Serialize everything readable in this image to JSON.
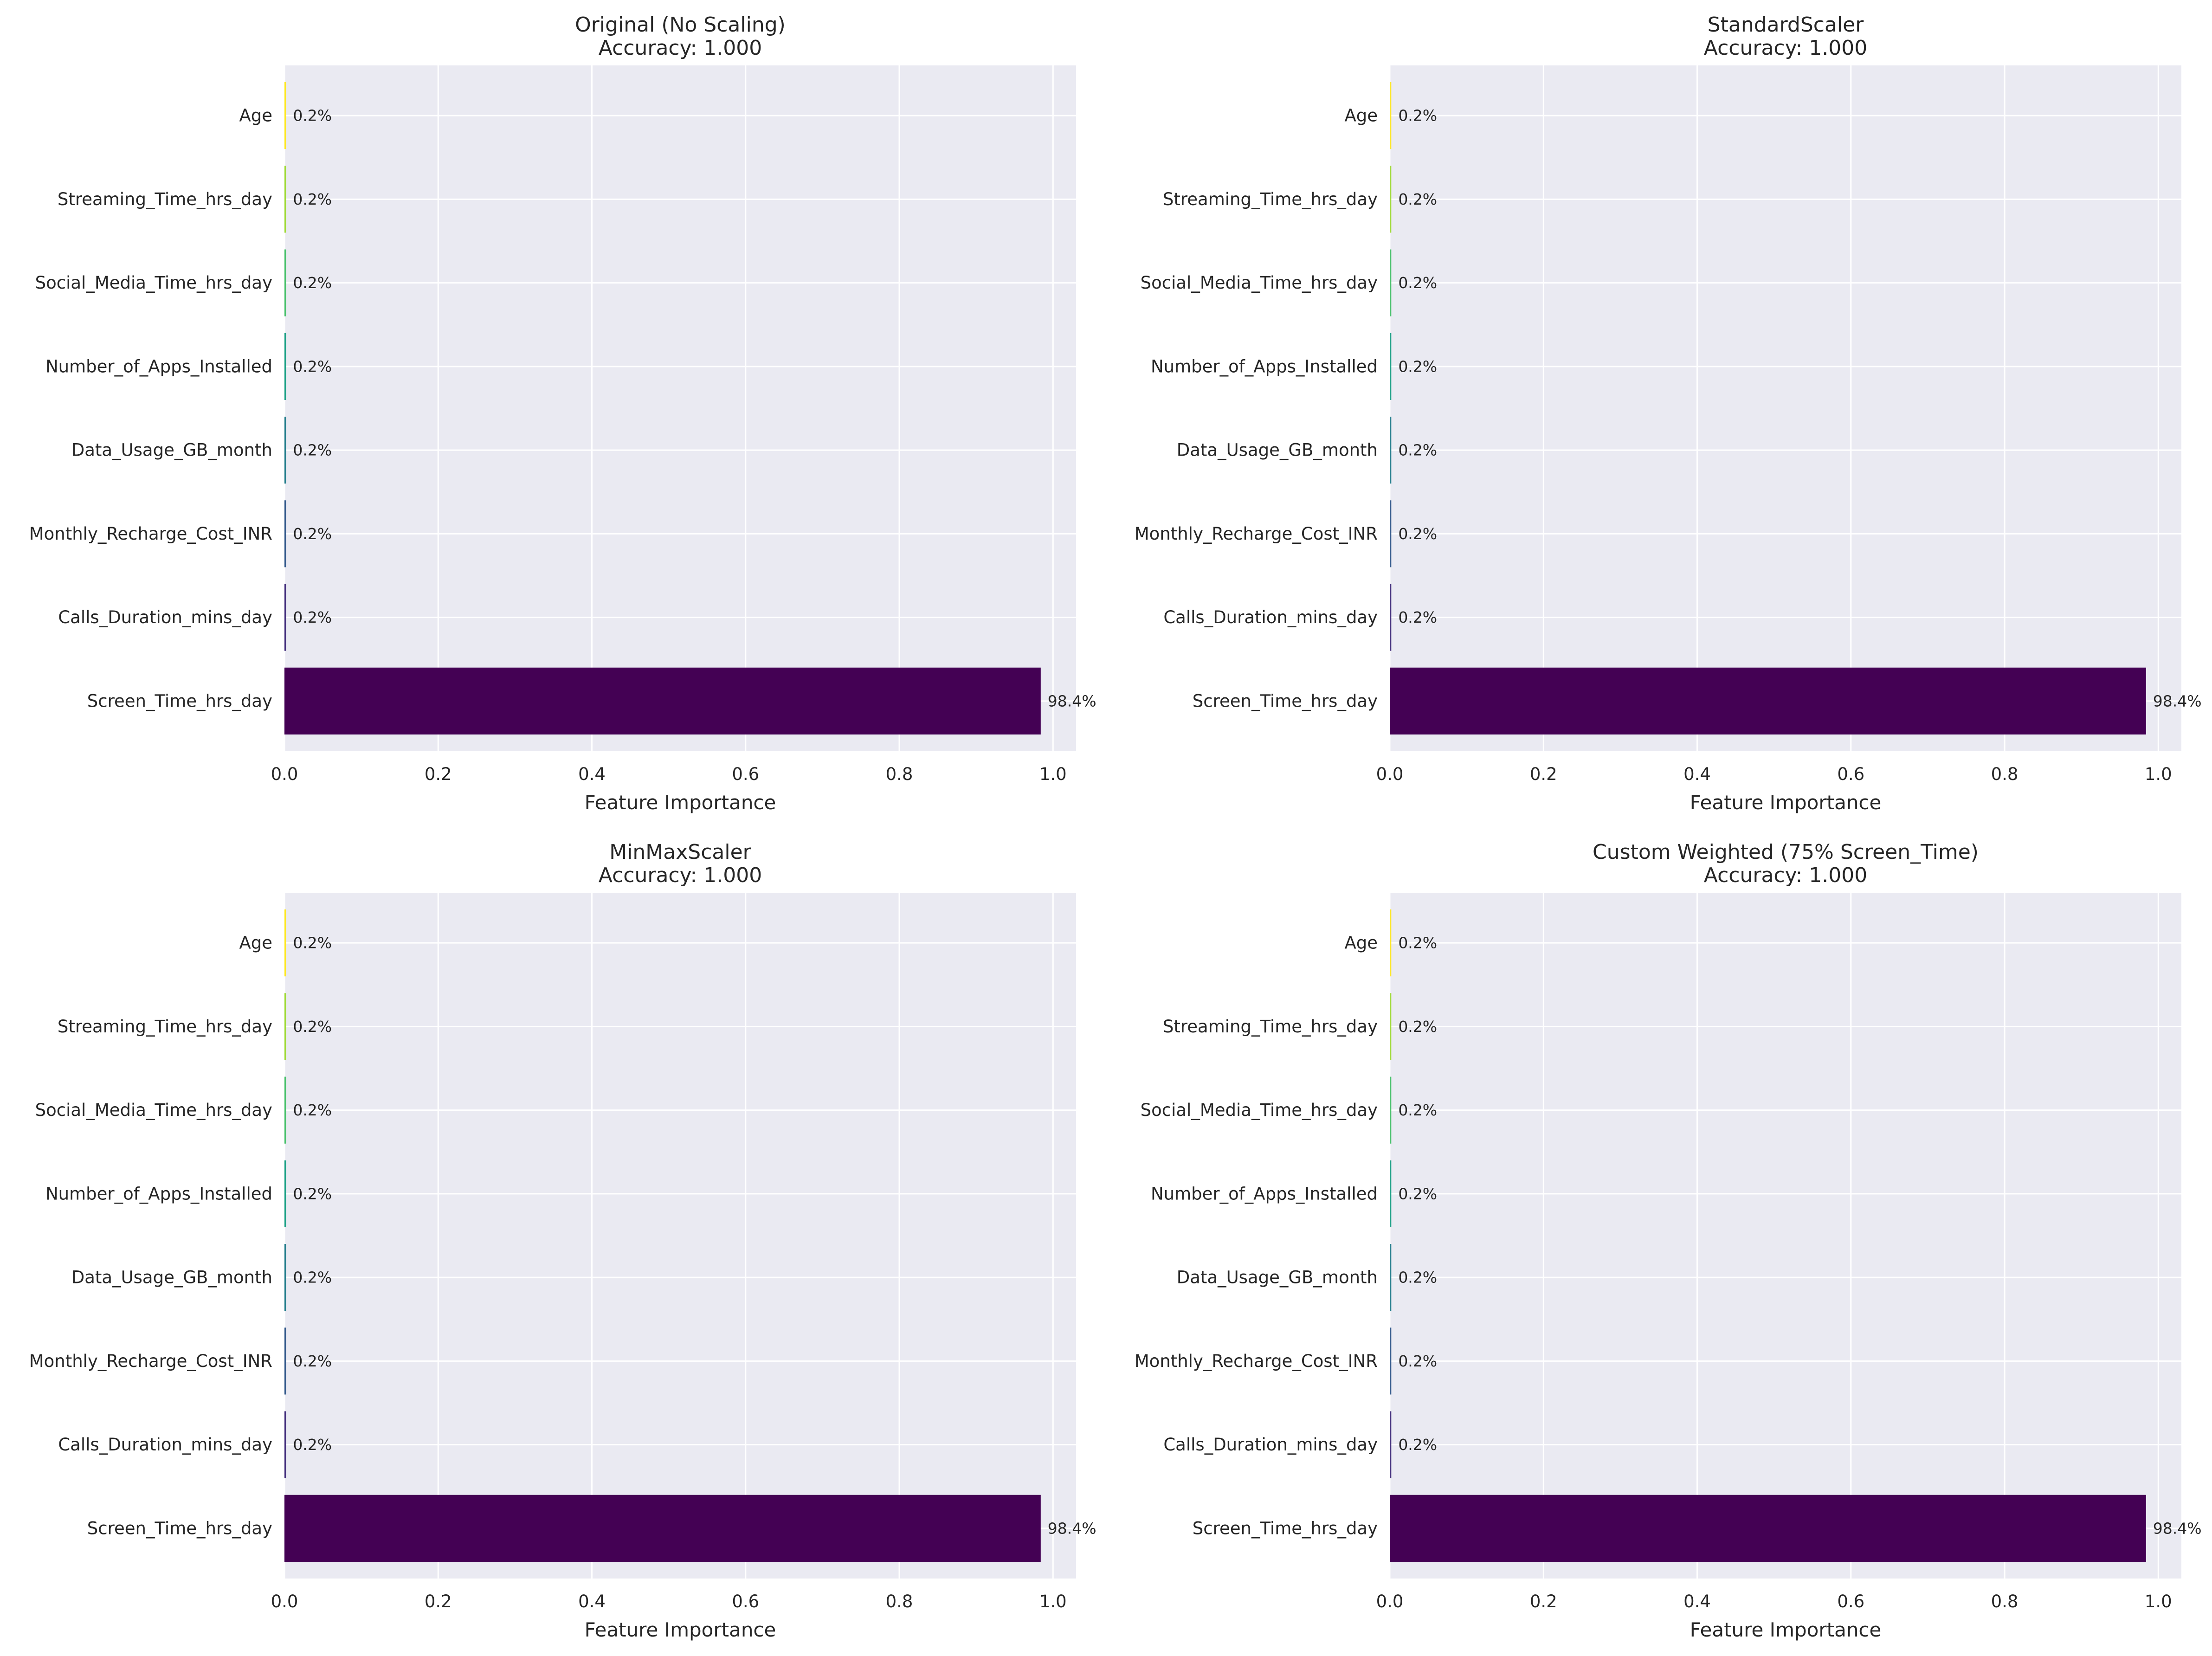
{
  "figure": {
    "background": "#ffffff",
    "axes_background": "#eaeaf2",
    "grid_color": "#ffffff",
    "text_color": "#262626"
  },
  "chart_data": [
    {
      "type": "bar",
      "orientation": "horizontal",
      "title": "Original (No Scaling)",
      "subtitle": "Accuracy: 1.000",
      "xlabel": "Feature Importance",
      "ylabel": "",
      "categories": [
        "Age",
        "Streaming_Time_hrs_day",
        "Social_Media_Time_hrs_day",
        "Number_of_Apps_Installed",
        "Data_Usage_GB_month",
        "Monthly_Recharge_Cost_INR",
        "Calls_Duration_mins_day",
        "Screen_Time_hrs_day"
      ],
      "values": [
        0.002,
        0.002,
        0.002,
        0.002,
        0.002,
        0.002,
        0.002,
        0.984
      ],
      "labels": [
        "0.2%",
        "0.2%",
        "0.2%",
        "0.2%",
        "0.2%",
        "0.2%",
        "0.2%",
        "98.4%"
      ],
      "colors": [
        "#fde725",
        "#a0da39",
        "#4ac16d",
        "#1fa187",
        "#277f8e",
        "#365c8d",
        "#46327e",
        "#440154"
      ],
      "xlim": [
        0,
        1.03
      ],
      "xticks": [
        0.0,
        0.2,
        0.4,
        0.6,
        0.8,
        1.0
      ],
      "xtick_labels": [
        "0.0",
        "0.2",
        "0.4",
        "0.6",
        "0.8",
        "1.0"
      ],
      "grid": true
    },
    {
      "type": "bar",
      "orientation": "horizontal",
      "title": "StandardScaler",
      "subtitle": "Accuracy: 1.000",
      "xlabel": "Feature Importance",
      "ylabel": "",
      "categories": [
        "Age",
        "Streaming_Time_hrs_day",
        "Social_Media_Time_hrs_day",
        "Number_of_Apps_Installed",
        "Data_Usage_GB_month",
        "Monthly_Recharge_Cost_INR",
        "Calls_Duration_mins_day",
        "Screen_Time_hrs_day"
      ],
      "values": [
        0.002,
        0.002,
        0.002,
        0.002,
        0.002,
        0.002,
        0.002,
        0.984
      ],
      "labels": [
        "0.2%",
        "0.2%",
        "0.2%",
        "0.2%",
        "0.2%",
        "0.2%",
        "0.2%",
        "98.4%"
      ],
      "colors": [
        "#fde725",
        "#a0da39",
        "#4ac16d",
        "#1fa187",
        "#277f8e",
        "#365c8d",
        "#46327e",
        "#440154"
      ],
      "xlim": [
        0,
        1.03
      ],
      "xticks": [
        0.0,
        0.2,
        0.4,
        0.6,
        0.8,
        1.0
      ],
      "xtick_labels": [
        "0.0",
        "0.2",
        "0.4",
        "0.6",
        "0.8",
        "1.0"
      ],
      "grid": true
    },
    {
      "type": "bar",
      "orientation": "horizontal",
      "title": "MinMaxScaler",
      "subtitle": "Accuracy: 1.000",
      "xlabel": "Feature Importance",
      "ylabel": "",
      "categories": [
        "Age",
        "Streaming_Time_hrs_day",
        "Social_Media_Time_hrs_day",
        "Number_of_Apps_Installed",
        "Data_Usage_GB_month",
        "Monthly_Recharge_Cost_INR",
        "Calls_Duration_mins_day",
        "Screen_Time_hrs_day"
      ],
      "values": [
        0.002,
        0.002,
        0.002,
        0.002,
        0.002,
        0.002,
        0.002,
        0.984
      ],
      "labels": [
        "0.2%",
        "0.2%",
        "0.2%",
        "0.2%",
        "0.2%",
        "0.2%",
        "0.2%",
        "98.4%"
      ],
      "colors": [
        "#fde725",
        "#a0da39",
        "#4ac16d",
        "#1fa187",
        "#277f8e",
        "#365c8d",
        "#46327e",
        "#440154"
      ],
      "xlim": [
        0,
        1.03
      ],
      "xticks": [
        0.0,
        0.2,
        0.4,
        0.6,
        0.8,
        1.0
      ],
      "xtick_labels": [
        "0.0",
        "0.2",
        "0.4",
        "0.6",
        "0.8",
        "1.0"
      ],
      "grid": true
    },
    {
      "type": "bar",
      "orientation": "horizontal",
      "title": "Custom Weighted (75% Screen_Time)",
      "subtitle": "Accuracy: 1.000",
      "xlabel": "Feature Importance",
      "ylabel": "",
      "categories": [
        "Age",
        "Streaming_Time_hrs_day",
        "Social_Media_Time_hrs_day",
        "Number_of_Apps_Installed",
        "Data_Usage_GB_month",
        "Monthly_Recharge_Cost_INR",
        "Calls_Duration_mins_day",
        "Screen_Time_hrs_day"
      ],
      "values": [
        0.002,
        0.002,
        0.002,
        0.002,
        0.002,
        0.002,
        0.002,
        0.984
      ],
      "labels": [
        "0.2%",
        "0.2%",
        "0.2%",
        "0.2%",
        "0.2%",
        "0.2%",
        "0.2%",
        "98.4%"
      ],
      "colors": [
        "#fde725",
        "#a0da39",
        "#4ac16d",
        "#1fa187",
        "#277f8e",
        "#365c8d",
        "#46327e",
        "#440154"
      ],
      "xlim": [
        0,
        1.03
      ],
      "xticks": [
        0.0,
        0.2,
        0.4,
        0.6,
        0.8,
        1.0
      ],
      "xtick_labels": [
        "0.0",
        "0.2",
        "0.4",
        "0.6",
        "0.8",
        "1.0"
      ],
      "grid": true
    }
  ]
}
